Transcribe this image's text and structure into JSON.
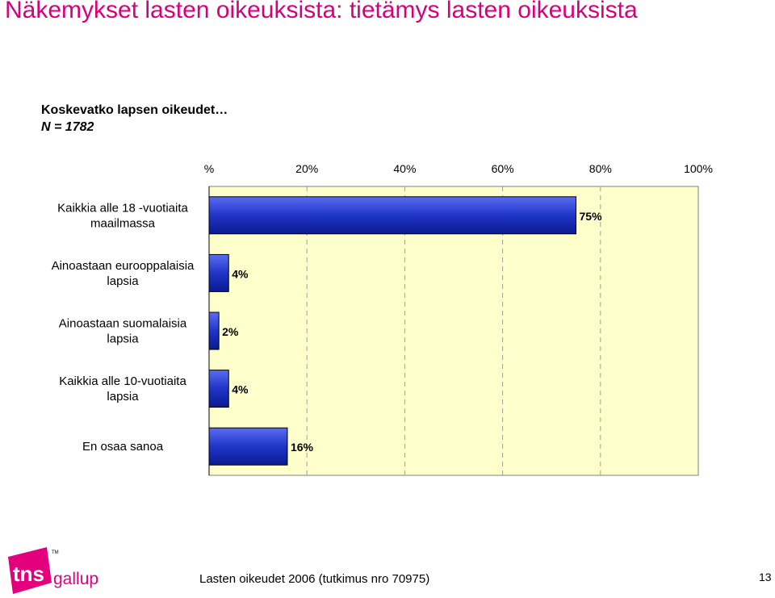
{
  "title": "Näkemykset lasten oikeuksista: tietämys lasten oikeuksista",
  "subtitle": "Koskevatko lapsen oikeudet…",
  "n_label": "N = 1782",
  "footer": "Lasten oikeudet 2006 (tutkimus nro 70975)",
  "page_number": "13",
  "logo": {
    "text_main": "tns",
    "text_secondary": "gallup",
    "trademark": "TM",
    "color": "#e4007c"
  },
  "colors": {
    "plot_background": "#ffffcc",
    "bar_fill": "#1f35c8",
    "bar_dark": "#00007a",
    "title": "#d8007a"
  },
  "chart_data": {
    "type": "bar",
    "orientation": "horizontal",
    "categories": [
      [
        "Kaikkia alle 18 -vuotiaita",
        "maailmassa"
      ],
      [
        "Ainoastaan eurooppalaisia",
        "lapsia"
      ],
      [
        "Ainoastaan suomalaisia",
        "lapsia"
      ],
      [
        "Kaikkia alle 10-vuotiaita",
        "lapsia"
      ],
      [
        "En osaa sanoa"
      ]
    ],
    "values": [
      75,
      4,
      2,
      4,
      16
    ],
    "value_labels": [
      "75%",
      "4%",
      "2%",
      "4%",
      "16%"
    ],
    "xlim": [
      0,
      100
    ],
    "ticks": [
      0,
      20,
      40,
      60,
      80,
      100
    ],
    "tick_labels": [
      "%",
      "20%",
      "40%",
      "60%",
      "80%",
      "100%"
    ],
    "grid": true,
    "legend": "none"
  }
}
